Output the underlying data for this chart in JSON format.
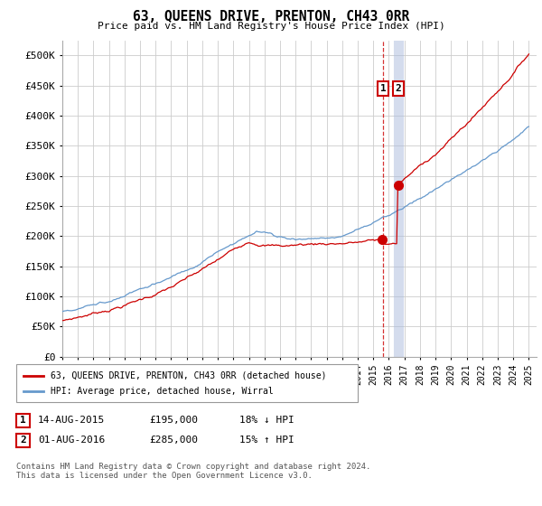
{
  "title": "63, QUEENS DRIVE, PRENTON, CH43 0RR",
  "subtitle": "Price paid vs. HM Land Registry's House Price Index (HPI)",
  "ylabel_ticks": [
    "£0",
    "£50K",
    "£100K",
    "£150K",
    "£200K",
    "£250K",
    "£300K",
    "£350K",
    "£400K",
    "£450K",
    "£500K"
  ],
  "ytick_values": [
    0,
    50000,
    100000,
    150000,
    200000,
    250000,
    300000,
    350000,
    400000,
    450000,
    500000
  ],
  "xstart_year": 1995,
  "xend_year": 2025,
  "red_color": "#cc0000",
  "blue_color": "#6699cc",
  "blue_vline_color": "#aabbdd",
  "vline1_year": 2015.62,
  "vline2_year": 2016.62,
  "sale1_year": 2015.62,
  "sale1_price": 195000,
  "sale2_year": 2016.62,
  "sale2_price": 285000,
  "legend_label_red": "63, QUEENS DRIVE, PRENTON, CH43 0RR (detached house)",
  "legend_label_blue": "HPI: Average price, detached house, Wirral",
  "table_row1_num": "1",
  "table_row1_date": "14-AUG-2015",
  "table_row1_price": "£195,000",
  "table_row1_hpi": "18% ↓ HPI",
  "table_row2_num": "2",
  "table_row2_date": "01-AUG-2016",
  "table_row2_price": "£285,000",
  "table_row2_hpi": "15% ↑ HPI",
  "footer": "Contains HM Land Registry data © Crown copyright and database right 2024.\nThis data is licensed under the Open Government Licence v3.0.",
  "background_color": "#ffffff",
  "grid_color": "#cccccc"
}
